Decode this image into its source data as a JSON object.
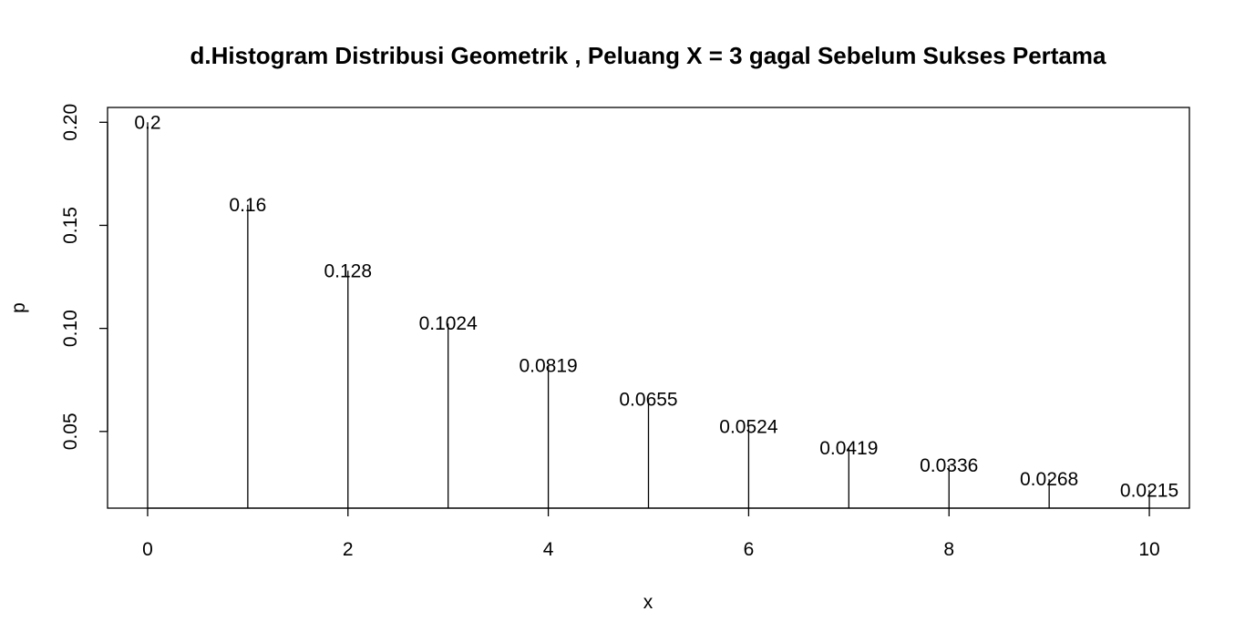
{
  "chart_data": {
    "type": "bar",
    "style": "vertical spikes (type h)",
    "title": "d.Histogram Distribusi Geometrik , Peluang X = 3 gagal Sebelum Sukses Pertama",
    "xlabel": "x",
    "ylabel": "p",
    "x": [
      0,
      1,
      2,
      3,
      4,
      5,
      6,
      7,
      8,
      9,
      10
    ],
    "values": [
      0.2,
      0.16,
      0.128,
      0.1024,
      0.08192,
      0.065536,
      0.0524288,
      0.04194304,
      0.033554432,
      0.0268435456,
      0.02147483648
    ],
    "data_labels": [
      "0.2",
      "0.16",
      "0.128",
      "0.1024",
      "0.0819",
      "0.0655",
      "0.0524",
      "0.0419",
      "0.0336",
      "0.0268",
      "0.0215"
    ],
    "xlim": [
      -0.4,
      10.4
    ],
    "ylim": [
      0.0128,
      0.2072
    ],
    "x_ticks": [
      0,
      2,
      4,
      6,
      8,
      10
    ],
    "x_tick_labels": [
      "0",
      "2",
      "4",
      "6",
      "8",
      "10"
    ],
    "y_ticks": [
      0.05,
      0.1,
      0.15,
      0.2
    ],
    "y_tick_labels": [
      "0.05",
      "0.10",
      "0.15",
      "0.20"
    ],
    "grid": false,
    "legend": "none",
    "colors": {
      "spike": "#000000",
      "background": "#ffffff",
      "text": "#000000"
    }
  }
}
